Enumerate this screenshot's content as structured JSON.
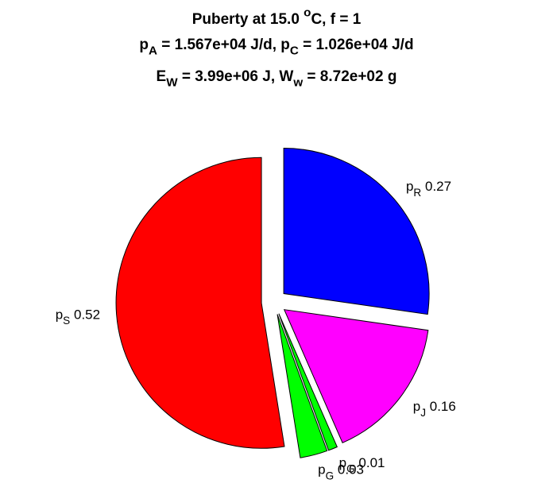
{
  "chart_data": {
    "type": "pie",
    "title_lines": [
      [
        "Puberty at 15.0 ",
        {
          "sup": "o"
        },
        "C, f = 1"
      ],
      [
        "p",
        {
          "sub": "A"
        },
        " = 1.567e+04 J/d,  p",
        {
          "sub": "C"
        },
        " = 1.026e+04 J/d"
      ],
      [
        "E",
        {
          "sub": "W"
        },
        " = 3.99e+06 J, W",
        {
          "sub": "w"
        },
        " = 8.72e+02 g"
      ]
    ],
    "categories": [
      [
        "p",
        {
          "sub": "R"
        }
      ],
      [
        "p",
        {
          "sub": "J"
        }
      ],
      [
        "p",
        {
          "sub": "G"
        }
      ],
      [
        "p",
        {
          "sub": "G"
        }
      ],
      [
        "p",
        {
          "sub": "S"
        }
      ]
    ],
    "values": [
      0.27,
      0.16,
      0.01,
      0.03,
      0.52
    ],
    "colors": [
      "#0000ff",
      "#ff00ff",
      "#00ff00",
      "#00ff00",
      "#ff0000"
    ],
    "exploded": true
  }
}
